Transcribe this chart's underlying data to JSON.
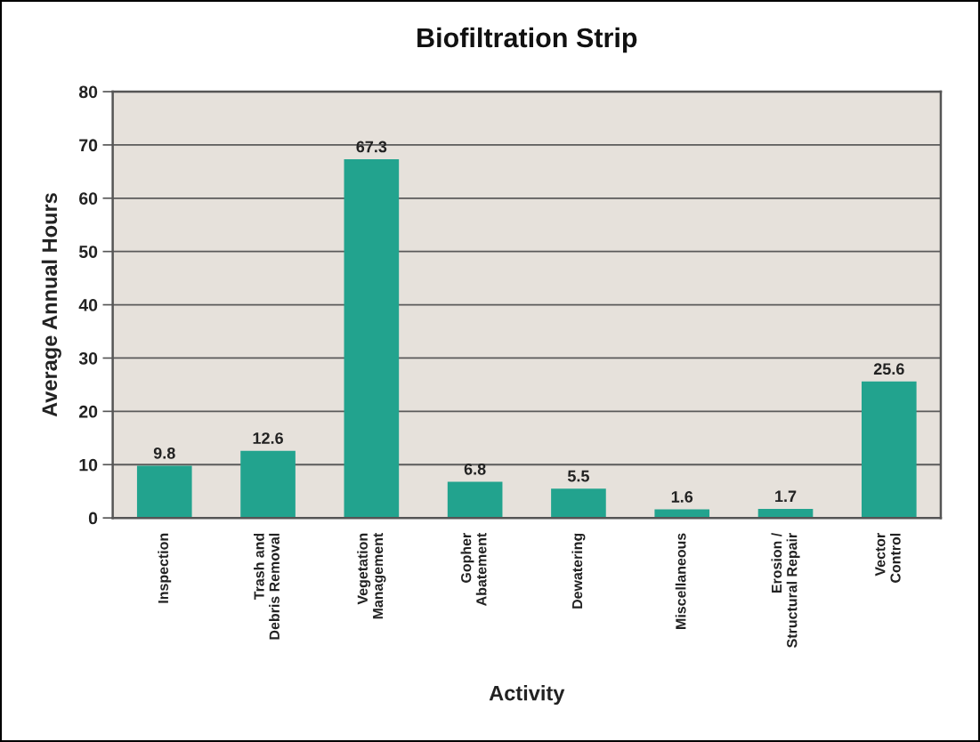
{
  "chart_data": {
    "type": "bar",
    "title": "Biofiltration Strip",
    "xlabel": "Activity",
    "ylabel": "Average Annual Hours",
    "categories": [
      "Inspection",
      "Trash and\nDebris Removal",
      "Vegetation\nManagement",
      "Gopher\nAbatement",
      "Dewatering",
      "Miscellaneous",
      "Erosion /\nStructural Repair",
      "Vector\nControl"
    ],
    "values": [
      9.8,
      12.6,
      67.3,
      6.8,
      5.5,
      1.6,
      1.7,
      25.6
    ],
    "color": "#22a38e",
    "ylim": [
      0,
      80
    ],
    "yticks": [
      0,
      10,
      20,
      30,
      40,
      50,
      60,
      70,
      80
    ],
    "grid": "y",
    "data_labels": true
  }
}
